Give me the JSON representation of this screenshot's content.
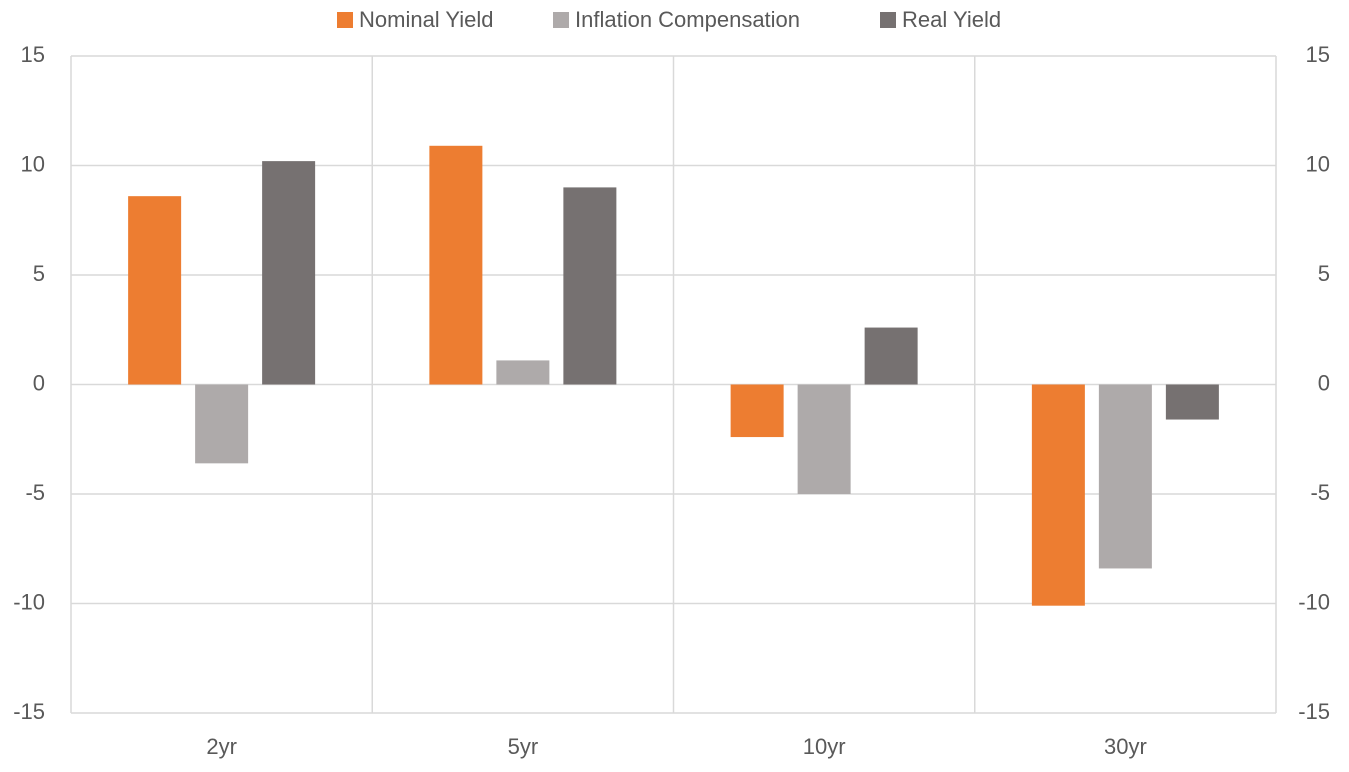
{
  "chart_data": {
    "type": "bar",
    "categories": [
      "2yr",
      "5yr",
      "10yr",
      "30yr"
    ],
    "series": [
      {
        "name": "Nominal Yield",
        "color": "#ed7d31",
        "values": [
          8.6,
          10.9,
          -2.4,
          -10.1
        ]
      },
      {
        "name": "Inflation Compensation",
        "color": "#aeaaaa",
        "values": [
          -3.6,
          1.1,
          -5.0,
          -8.4
        ]
      },
      {
        "name": "Real Yield",
        "color": "#767171",
        "values": [
          10.2,
          9.0,
          2.6,
          -1.6
        ]
      }
    ],
    "ylim": [
      -15,
      15
    ],
    "yticks": [
      -15,
      -10,
      -5,
      0,
      5,
      10,
      15
    ],
    "y2lim": [
      -15,
      15
    ],
    "y2ticks": [
      -15,
      -10,
      -5,
      0,
      5,
      10,
      15
    ],
    "grid": true,
    "legend": "top"
  }
}
